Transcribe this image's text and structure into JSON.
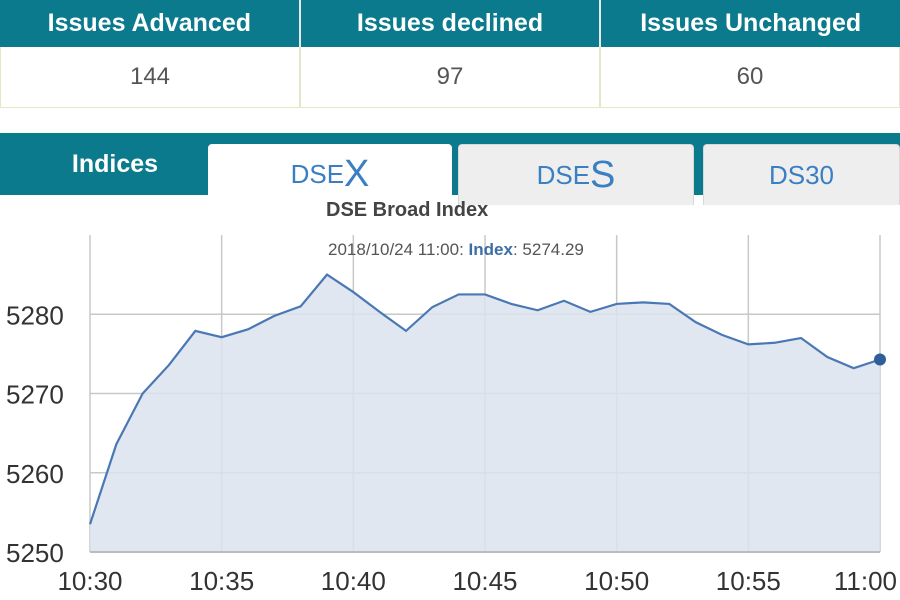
{
  "stats": {
    "headers": [
      "Issues Advanced",
      "Issues declined",
      "Issues Unchanged"
    ],
    "values": [
      "144",
      "97",
      "60"
    ]
  },
  "tabs": {
    "indices_label": "Indices",
    "dsex": {
      "prefix": "DSE",
      "suffix": "X"
    },
    "dses": {
      "prefix": "DSE",
      "suffix": "S"
    },
    "ds30": "DS30"
  },
  "tooltip": {
    "datetime": "2018/10/24 11:00",
    "series_name": "Index",
    "value": "5274.29"
  },
  "colors": {
    "header_bg": "#0b7a8c",
    "line": "#4a78b4",
    "area": "#dbe3ee",
    "tab_text": "#3a7fc1"
  },
  "chart_data": {
    "type": "area",
    "title": "DSE Broad Index",
    "xlabel": "",
    "ylabel": "",
    "x": [
      "10:30",
      "10:31",
      "10:32",
      "10:33",
      "10:34",
      "10:35",
      "10:36",
      "10:37",
      "10:38",
      "10:39",
      "10:40",
      "10:41",
      "10:42",
      "10:43",
      "10:44",
      "10:45",
      "10:46",
      "10:47",
      "10:48",
      "10:49",
      "10:50",
      "10:51",
      "10:52",
      "10:53",
      "10:54",
      "10:55",
      "10:56",
      "10:57",
      "10:58",
      "10:59",
      "11:00"
    ],
    "series": [
      {
        "values": [
          5253.5,
          5263.6,
          5270.0,
          5273.6,
          5277.9,
          5277.1,
          5278.1,
          5279.8,
          5281.0,
          5285.0,
          5282.8,
          5280.3,
          5277.9,
          5280.9,
          5282.5,
          5282.5,
          5281.3,
          5280.5,
          5281.7,
          5280.3,
          5281.3,
          5281.5,
          5281.3,
          5279.0,
          5277.4,
          5276.2,
          5276.4,
          5277.0,
          5274.6,
          5273.2,
          5274.29
        ]
      }
    ],
    "x_ticks": [
      "10:30",
      "10:35",
      "10:40",
      "10:45",
      "10:50",
      "10:55",
      "11:00"
    ],
    "y_ticks": [
      "5250",
      "5260",
      "5270",
      "5280"
    ],
    "ylim": [
      5250,
      5290
    ],
    "grid": true,
    "legend": "none"
  }
}
